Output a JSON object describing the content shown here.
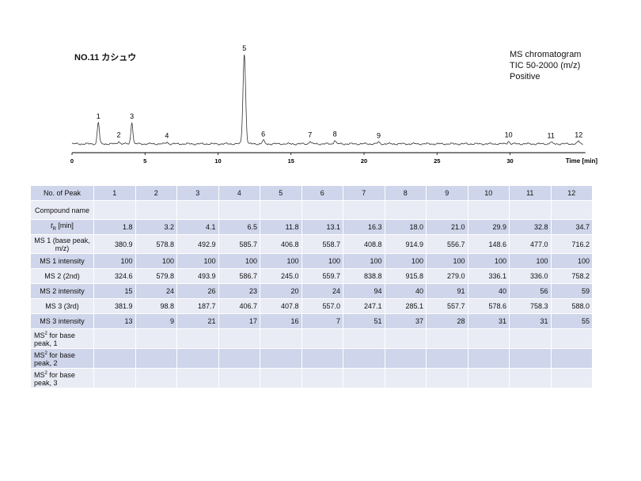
{
  "sample_title": "NO.11 カシュウ",
  "ms_info": [
    "MS chromatogram",
    "TIC 50-2000 (m/z)",
    "Positive"
  ],
  "chart_data": {
    "type": "line",
    "xlabel": "Time [min]",
    "xlim": [
      0,
      35
    ],
    "x_ticks": [
      0,
      5,
      10,
      15,
      20,
      25,
      30
    ],
    "y_axis_shown": false,
    "grid": false,
    "peaks": [
      {
        "label": "1",
        "rt": 1.8,
        "height": 0.24
      },
      {
        "label": "2",
        "rt": 3.2,
        "height": 0.03
      },
      {
        "label": "3",
        "rt": 4.1,
        "height": 0.24
      },
      {
        "label": "4",
        "rt": 6.5,
        "height": 0.02
      },
      {
        "label": "5",
        "rt": 11.8,
        "height": 1.0
      },
      {
        "label": "6",
        "rt": 13.1,
        "height": 0.04
      },
      {
        "label": "7",
        "rt": 16.3,
        "height": 0.03
      },
      {
        "label": "8",
        "rt": 18.0,
        "height": 0.04
      },
      {
        "label": "9",
        "rt": 21.0,
        "height": 0.02
      },
      {
        "label": "10",
        "rt": 29.9,
        "height": 0.03
      },
      {
        "label": "11",
        "rt": 32.8,
        "height": 0.02
      },
      {
        "label": "12",
        "rt": 34.7,
        "height": 0.03
      }
    ]
  },
  "table": {
    "row_headers": {
      "peak": "No. of Peak",
      "compound": "Compound name",
      "rt": "[min]",
      "ms1": "MS 1 (base peak, m/z)",
      "ms1_int": "MS 1 intensity",
      "ms2": "MS 2 (2nd)",
      "ms2_int": "MS 2 intensity",
      "ms3": "MS 3 (3rd)",
      "ms3_int": "MS 3 intensity",
      "ms2bp1": " for base peak, 1",
      "ms2bp2": " for base peak, 2",
      "ms2bp3": " for base peak, 3"
    },
    "rt_symbol": "t",
    "rt_sub": "R",
    "ms2_symbol": "MS",
    "ms2_sup": "2",
    "peaks": [
      "1",
      "2",
      "3",
      "4",
      "5",
      "6",
      "7",
      "8",
      "9",
      "10",
      "11",
      "12"
    ],
    "compound": [
      "",
      "",
      "",
      "",
      "",
      "",
      "",
      "",
      "",
      "",
      "",
      ""
    ],
    "rt": [
      "1.8",
      "3.2",
      "4.1",
      "6.5",
      "11.8",
      "13.1",
      "16.3",
      "18.0",
      "21.0",
      "29.9",
      "32.8",
      "34.7"
    ],
    "ms1": [
      "380.9",
      "578.8",
      "492.9",
      "585.7",
      "406.8",
      "558.7",
      "408.8",
      "914.9",
      "556.7",
      "148.6",
      "477.0",
      "716.2"
    ],
    "ms1_int": [
      "100",
      "100",
      "100",
      "100",
      "100",
      "100",
      "100",
      "100",
      "100",
      "100",
      "100",
      "100"
    ],
    "ms2": [
      "324.6",
      "579.8",
      "493.9",
      "586.7",
      "245.0",
      "559.7",
      "838.8",
      "915.8",
      "279.0",
      "336.1",
      "336.0",
      "758.2"
    ],
    "ms2_int": [
      "15",
      "24",
      "26",
      "23",
      "20",
      "24",
      "94",
      "40",
      "91",
      "40",
      "56",
      "59"
    ],
    "ms3": [
      "381.9",
      "98.8",
      "187.7",
      "406.7",
      "407.8",
      "557.0",
      "247.1",
      "285.1",
      "557.7",
      "578.6",
      "758.3",
      "588.0"
    ],
    "ms3_int": [
      "13",
      "9",
      "21",
      "17",
      "16",
      "7",
      "51",
      "37",
      "28",
      "31",
      "31",
      "55"
    ],
    "ms2bp1": [
      "",
      "",
      "",
      "",
      "",
      "",
      "",
      "",
      "",
      "",
      "",
      ""
    ],
    "ms2bp2": [
      "",
      "",
      "",
      "",
      "",
      "",
      "",
      "",
      "",
      "",
      "",
      ""
    ],
    "ms2bp3": [
      "",
      "",
      "",
      "",
      "",
      "",
      "",
      "",
      "",
      "",
      "",
      ""
    ]
  }
}
